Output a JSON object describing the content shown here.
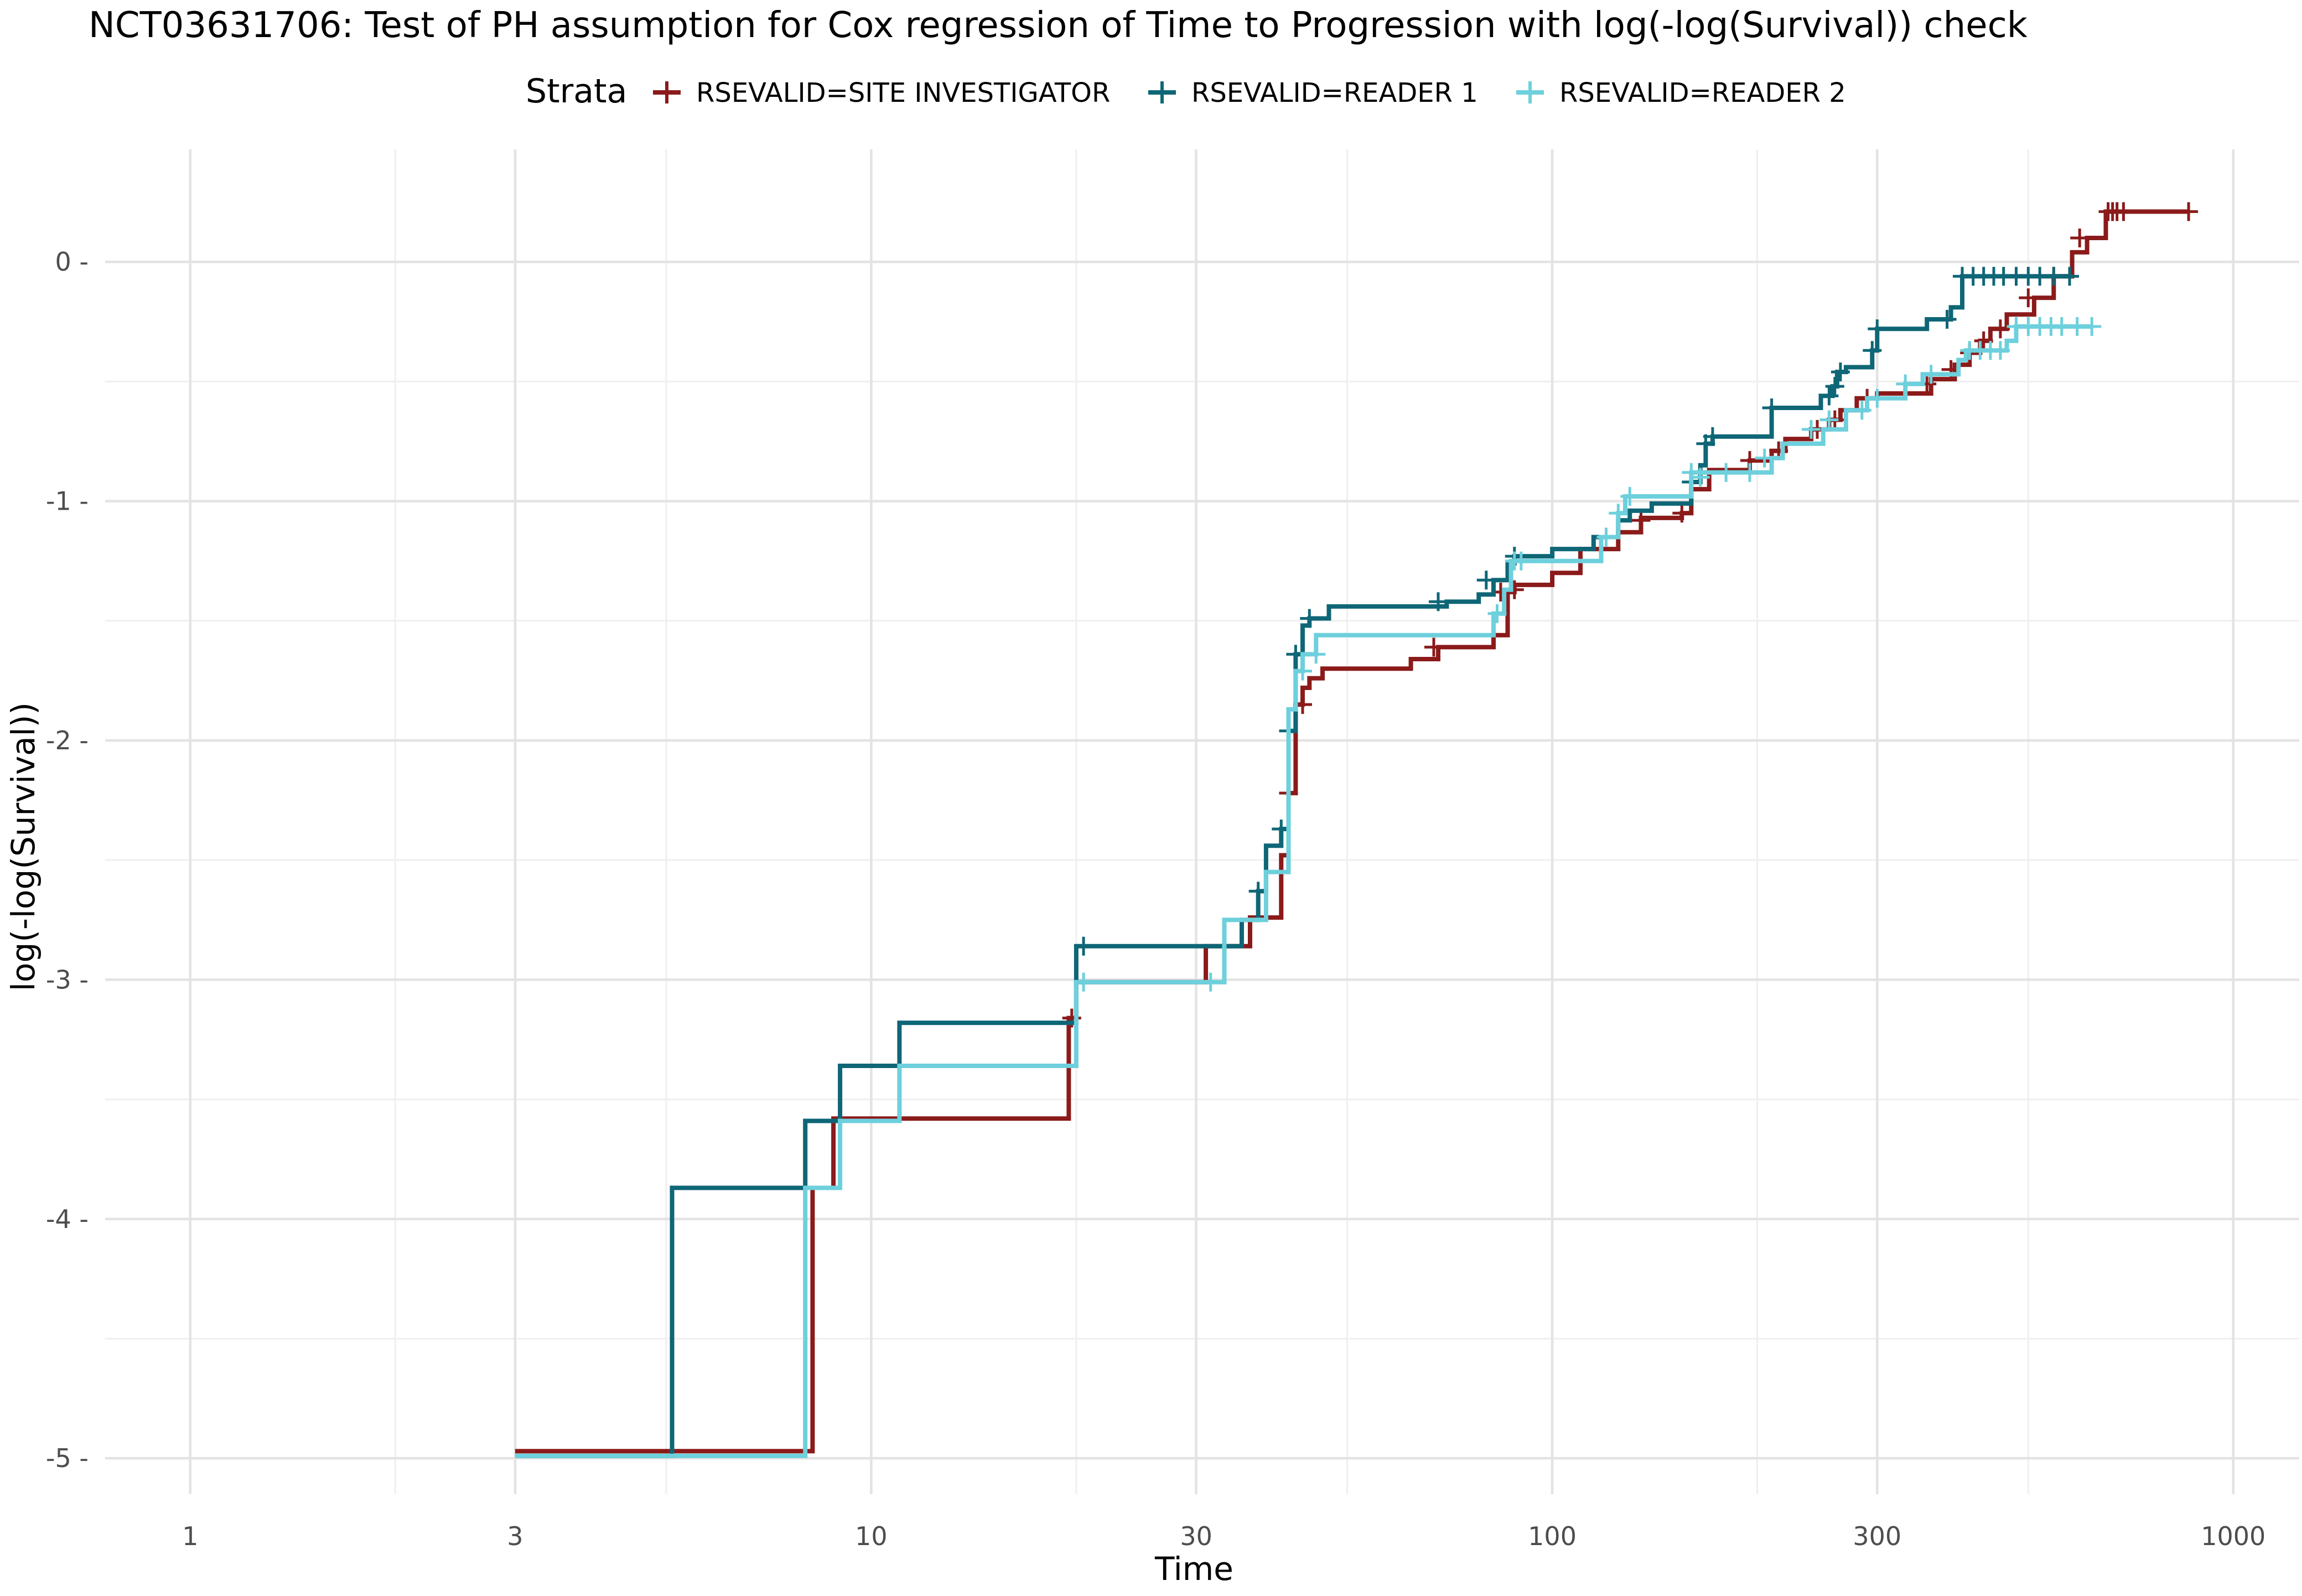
{
  "chart_data": {
    "type": "line",
    "title": "NCT03631706: Test of PH assumption for Cox regression of Time to Progression with log(-log(Survival)) check",
    "xlabel": "Time",
    "ylabel": "log(-log(Survival))",
    "x_scale": "log10",
    "xlim": [
      0.75,
      1250
    ],
    "ylim": [
      -5.15,
      0.47
    ],
    "x_ticks": [
      1,
      3,
      10,
      30,
      100,
      300,
      1000
    ],
    "x_tick_labels": [
      "1",
      "3",
      "10",
      "30",
      "100",
      "300",
      "1000"
    ],
    "x_minor_ticks": [
      2,
      5,
      20,
      50,
      200,
      500
    ],
    "y_ticks": [
      -5,
      -4,
      -3,
      -2,
      -1,
      0
    ],
    "y_tick_labels": [
      "-5",
      "-4",
      "-3",
      "-2",
      "-1",
      "0"
    ],
    "y_minor_ticks": [
      -4.5,
      -3.5,
      -2.5,
      -1.5,
      -0.5
    ],
    "grid": true,
    "legend": {
      "title": "Strata",
      "placement": "top"
    },
    "series": [
      {
        "name": "RSEVALID=SITE INVESTIGATOR",
        "color": "#8b1a1a",
        "steps": [
          [
            3,
            -4.97
          ],
          [
            8.2,
            -3.87
          ],
          [
            8.8,
            -3.58
          ],
          [
            19.5,
            -3.16
          ],
          [
            20,
            -3.01
          ],
          [
            31,
            -2.86
          ],
          [
            36,
            -2.74
          ],
          [
            40,
            -2.48
          ],
          [
            41,
            -2.22
          ],
          [
            42,
            -1.85
          ],
          [
            43,
            -1.78
          ],
          [
            44,
            -1.74
          ],
          [
            46,
            -1.7
          ],
          [
            62,
            -1.66
          ],
          [
            68,
            -1.61
          ],
          [
            82,
            -1.56
          ],
          [
            86,
            -1.38
          ],
          [
            88,
            -1.35
          ],
          [
            100,
            -1.3
          ],
          [
            110,
            -1.2
          ],
          [
            125,
            -1.13
          ],
          [
            135,
            -1.07
          ],
          [
            155,
            -1.05
          ],
          [
            160,
            -0.95
          ],
          [
            170,
            -0.87
          ],
          [
            195,
            -0.83
          ],
          [
            210,
            -0.79
          ],
          [
            220,
            -0.74
          ],
          [
            240,
            -0.7
          ],
          [
            255,
            -0.66
          ],
          [
            265,
            -0.62
          ],
          [
            280,
            -0.57
          ],
          [
            300,
            -0.55
          ],
          [
            360,
            -0.49
          ],
          [
            390,
            -0.43
          ],
          [
            410,
            -0.38
          ],
          [
            425,
            -0.33
          ],
          [
            440,
            -0.28
          ],
          [
            465,
            -0.22
          ],
          [
            510,
            -0.15
          ],
          [
            545,
            -0.06
          ],
          [
            580,
            0.04
          ],
          [
            610,
            0.1
          ],
          [
            650,
            0.21
          ]
        ],
        "end_x": 860,
        "censor_marks": [
          [
            19.7,
            -3.16
          ],
          [
            41,
            -2.22
          ],
          [
            43,
            -1.85
          ],
          [
            67,
            -1.61
          ],
          [
            84,
            -1.38
          ],
          [
            88,
            -1.37
          ],
          [
            135,
            -1.08
          ],
          [
            155,
            -1.05
          ],
          [
            195,
            -0.83
          ],
          [
            215,
            -0.79
          ],
          [
            245,
            -0.7
          ],
          [
            260,
            -0.66
          ],
          [
            290,
            -0.57
          ],
          [
            355,
            -0.51
          ],
          [
            385,
            -0.45
          ],
          [
            410,
            -0.38
          ],
          [
            430,
            -0.33
          ],
          [
            455,
            -0.28
          ],
          [
            500,
            -0.15
          ],
          [
            545,
            -0.06
          ],
          [
            595,
            0.1
          ],
          [
            655,
            0.21
          ],
          [
            665,
            0.21
          ],
          [
            675,
            0.21
          ],
          [
            690,
            0.21
          ],
          [
            860,
            0.21
          ]
        ]
      },
      {
        "name": "RSEVALID=READER 1",
        "color": "#0e6676",
        "steps": [
          [
            3,
            -4.99
          ],
          [
            5.1,
            -3.87
          ],
          [
            8.0,
            -3.59
          ],
          [
            9.0,
            -3.36
          ],
          [
            11.0,
            -3.18
          ],
          [
            20,
            -2.86
          ],
          [
            35,
            -2.75
          ],
          [
            37,
            -2.63
          ],
          [
            38,
            -2.44
          ],
          [
            40,
            -2.37
          ],
          [
            41,
            -1.96
          ],
          [
            42,
            -1.64
          ],
          [
            43,
            -1.52
          ],
          [
            44,
            -1.49
          ],
          [
            47,
            -1.44
          ],
          [
            70,
            -1.42
          ],
          [
            78,
            -1.39
          ],
          [
            82,
            -1.33
          ],
          [
            86,
            -1.26
          ],
          [
            88,
            -1.23
          ],
          [
            100,
            -1.2
          ],
          [
            115,
            -1.15
          ],
          [
            125,
            -1.08
          ],
          [
            130,
            -1.04
          ],
          [
            140,
            -1.01
          ],
          [
            160,
            -0.92
          ],
          [
            165,
            -0.85
          ],
          [
            168,
            -0.76
          ],
          [
            172,
            -0.73
          ],
          [
            210,
            -0.61
          ],
          [
            248,
            -0.56
          ],
          [
            258,
            -0.52
          ],
          [
            262,
            -0.46
          ],
          [
            270,
            -0.44
          ],
          [
            295,
            -0.37
          ],
          [
            300,
            -0.28
          ],
          [
            355,
            -0.24
          ],
          [
            385,
            -0.19
          ],
          [
            400,
            -0.06
          ],
          [
            425,
            -0.06
          ]
        ],
        "end_x": 580,
        "censor_marks": [
          [
            11,
            -3.36
          ],
          [
            20.5,
            -2.86
          ],
          [
            37,
            -2.63
          ],
          [
            40,
            -2.37
          ],
          [
            41,
            -1.96
          ],
          [
            42,
            -1.64
          ],
          [
            44,
            -1.49
          ],
          [
            68,
            -1.42
          ],
          [
            80,
            -1.33
          ],
          [
            88,
            -1.23
          ],
          [
            160,
            -0.92
          ],
          [
            168,
            -0.76
          ],
          [
            172,
            -0.73
          ],
          [
            210,
            -0.61
          ],
          [
            255,
            -0.56
          ],
          [
            260,
            -0.52
          ],
          [
            265,
            -0.46
          ],
          [
            295,
            -0.37
          ],
          [
            300,
            -0.28
          ],
          [
            380,
            -0.24
          ],
          [
            400,
            -0.06
          ],
          [
            415,
            -0.06
          ],
          [
            430,
            -0.06
          ],
          [
            445,
            -0.06
          ],
          [
            460,
            -0.06
          ],
          [
            480,
            -0.06
          ],
          [
            500,
            -0.06
          ],
          [
            520,
            -0.06
          ],
          [
            545,
            -0.06
          ],
          [
            575,
            -0.06
          ]
        ]
      },
      {
        "name": "RSEVALID=READER 2",
        "color": "#6dd0dc",
        "steps": [
          [
            3,
            -4.99
          ],
          [
            8.0,
            -3.87
          ],
          [
            9.0,
            -3.59
          ],
          [
            11.0,
            -3.36
          ],
          [
            20,
            -3.01
          ],
          [
            33,
            -2.75
          ],
          [
            38,
            -2.55
          ],
          [
            41,
            -1.87
          ],
          [
            42,
            -1.71
          ],
          [
            43,
            -1.64
          ],
          [
            45,
            -1.56
          ],
          [
            82,
            -1.47
          ],
          [
            85,
            -1.37
          ],
          [
            87,
            -1.25
          ],
          [
            100,
            -1.25
          ],
          [
            118,
            -1.15
          ],
          [
            125,
            -1.05
          ],
          [
            128,
            -0.98
          ],
          [
            155,
            -0.98
          ],
          [
            160,
            -0.88
          ],
          [
            210,
            -0.82
          ],
          [
            218,
            -0.76
          ],
          [
            250,
            -0.7
          ],
          [
            270,
            -0.62
          ],
          [
            290,
            -0.57
          ],
          [
            330,
            -0.51
          ],
          [
            350,
            -0.47
          ],
          [
            395,
            -0.41
          ],
          [
            405,
            -0.37
          ],
          [
            465,
            -0.33
          ],
          [
            480,
            -0.27
          ]
        ],
        "end_x": 620,
        "censor_marks": [
          [
            20.5,
            -3.01
          ],
          [
            31.5,
            -3.01
          ],
          [
            43,
            -1.71
          ],
          [
            45,
            -1.64
          ],
          [
            83,
            -1.47
          ],
          [
            88,
            -1.25
          ],
          [
            90,
            -1.25
          ],
          [
            120,
            -1.15
          ],
          [
            125,
            -1.05
          ],
          [
            130,
            -0.98
          ],
          [
            160,
            -0.88
          ],
          [
            165,
            -0.9
          ],
          [
            180,
            -0.88
          ],
          [
            195,
            -0.88
          ],
          [
            205,
            -0.82
          ],
          [
            240,
            -0.7
          ],
          [
            255,
            -0.66
          ],
          [
            285,
            -0.62
          ],
          [
            300,
            -0.57
          ],
          [
            330,
            -0.51
          ],
          [
            360,
            -0.47
          ],
          [
            410,
            -0.37
          ],
          [
            425,
            -0.37
          ],
          [
            440,
            -0.37
          ],
          [
            455,
            -0.37
          ],
          [
            480,
            -0.27
          ],
          [
            500,
            -0.27
          ],
          [
            520,
            -0.27
          ],
          [
            540,
            -0.27
          ],
          [
            560,
            -0.27
          ],
          [
            590,
            -0.27
          ],
          [
            620,
            -0.27
          ]
        ]
      }
    ]
  }
}
